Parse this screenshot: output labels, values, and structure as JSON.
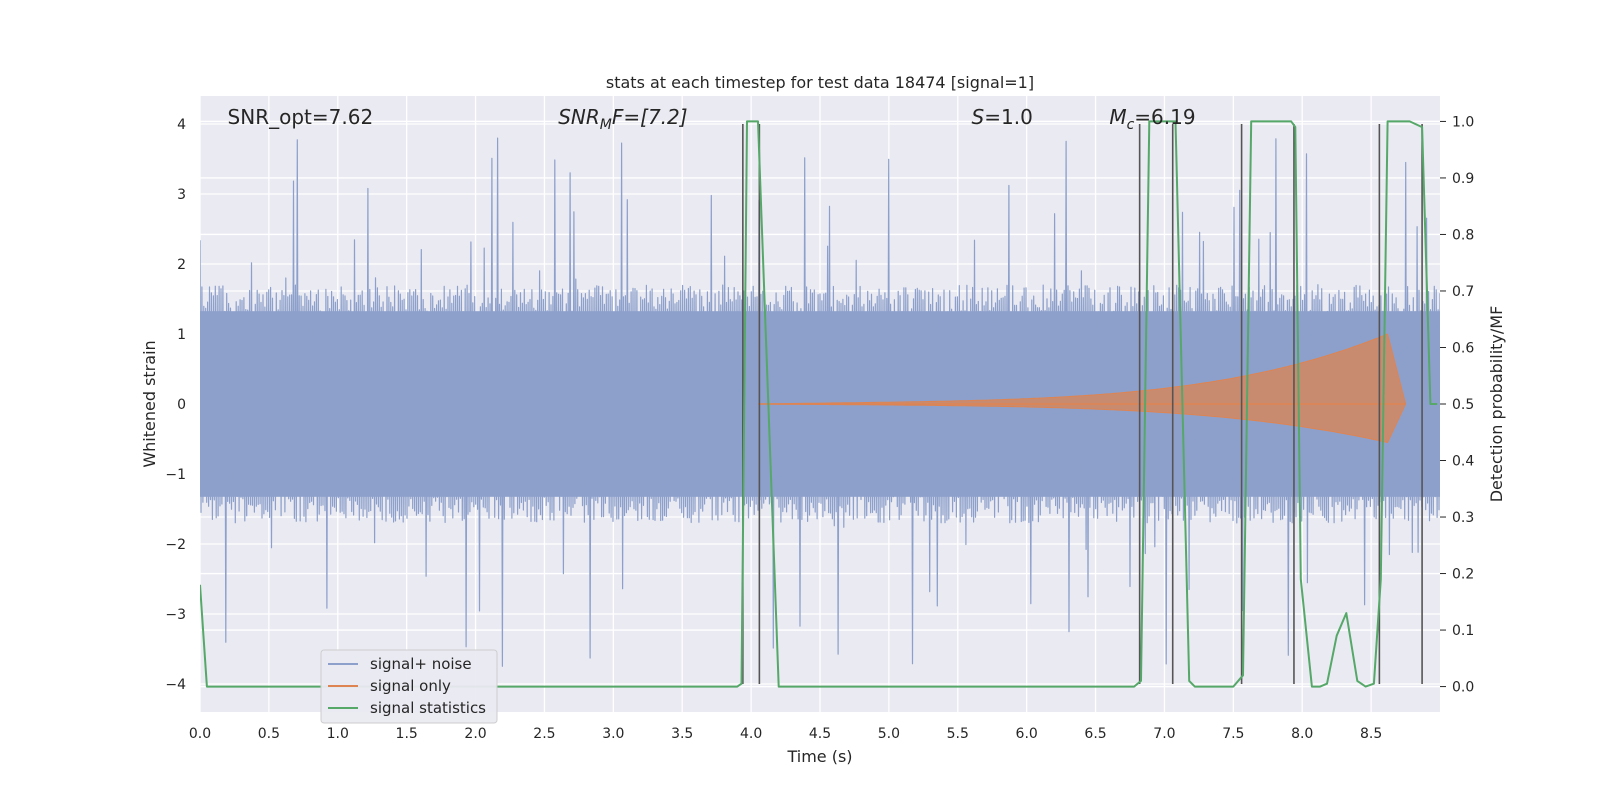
{
  "chart_data": {
    "type": "line",
    "title": "stats at each timestep for test data 18474 [signal=1]",
    "xlabel": "Time (s)",
    "ylabel": "Whitened strain",
    "y2label": "Detection probability/MF",
    "xlim": [
      0.0,
      9.0
    ],
    "ylim": [
      -4.4,
      4.4
    ],
    "y2lim": [
      -0.045,
      1.045
    ],
    "xticks": [
      "0.0",
      "0.5",
      "1.0",
      "1.5",
      "2.0",
      "2.5",
      "3.0",
      "3.5",
      "4.0",
      "4.5",
      "5.0",
      "5.5",
      "6.0",
      "6.5",
      "7.0",
      "7.5",
      "8.0",
      "8.5"
    ],
    "yticks": [
      "−4",
      "−3",
      "−2",
      "−1",
      "0",
      "1",
      "2",
      "3",
      "4"
    ],
    "y2ticks": [
      "0.0",
      "0.1",
      "0.2",
      "0.3",
      "0.4",
      "0.5",
      "0.6",
      "0.7",
      "0.8",
      "0.9",
      "1.0"
    ],
    "grid": true,
    "legend_position": "lower-left",
    "annotations": [
      {
        "prefix": "SNR_opt",
        "sub": "",
        "value": "=7.62",
        "x": 0.2,
        "italic": false
      },
      {
        "prefix": "SNR",
        "sub": "M",
        "value": "F=[7.2]",
        "x": 2.6,
        "italic": true
      },
      {
        "prefix": "S",
        "sub": "",
        "value": "=1.0",
        "x": 5.6,
        "italic": true
      },
      {
        "prefix": "M",
        "sub": "c",
        "value": "=6.19",
        "x": 6.6,
        "italic": true
      }
    ],
    "series": [
      {
        "name": "signal+ noise",
        "color": "#8da0cb",
        "axis": "left",
        "description": "whitened noisy strain, roughly within ±1.7 with spikes up to about ±4",
        "band": [
          -1.7,
          1.7
        ]
      },
      {
        "name": "signal only",
        "color": "#dd8452",
        "axis": "left",
        "chirp": {
          "start": 4.05,
          "end": 8.62,
          "amp_start": 0.0,
          "amp_end": 0.9,
          "ringdown_end": 8.75
        }
      },
      {
        "name": "signal statistics",
        "color": "#55a868",
        "axis": "right",
        "points": [
          [
            0.0,
            0.18
          ],
          [
            0.05,
            0.0
          ],
          [
            0.1,
            0.0
          ],
          [
            3.9,
            0.0
          ],
          [
            3.93,
            0.005
          ],
          [
            3.97,
            1.0
          ],
          [
            4.05,
            1.0
          ],
          [
            4.2,
            0.0
          ],
          [
            6.78,
            0.0
          ],
          [
            6.83,
            0.01
          ],
          [
            6.89,
            1.0
          ],
          [
            7.08,
            1.0
          ],
          [
            7.18,
            0.01
          ],
          [
            7.22,
            0.0
          ],
          [
            7.5,
            0.0
          ],
          [
            7.57,
            0.02
          ],
          [
            7.63,
            1.0
          ],
          [
            7.92,
            1.0
          ],
          [
            7.95,
            0.99
          ],
          [
            7.99,
            0.19
          ],
          [
            8.07,
            0.0
          ],
          [
            8.13,
            0.0
          ],
          [
            8.18,
            0.005
          ],
          [
            8.25,
            0.09
          ],
          [
            8.32,
            0.13
          ],
          [
            8.4,
            0.01
          ],
          [
            8.46,
            0.0
          ],
          [
            8.52,
            0.005
          ],
          [
            8.57,
            0.19
          ],
          [
            8.62,
            1.0
          ],
          [
            8.78,
            1.0
          ],
          [
            8.87,
            0.99
          ],
          [
            8.93,
            0.5
          ],
          [
            8.98,
            0.5
          ]
        ]
      }
    ],
    "vertical_lines_x": [
      3.94,
      4.06,
      6.82,
      7.06,
      7.56,
      7.94,
      8.56,
      8.87
    ]
  }
}
